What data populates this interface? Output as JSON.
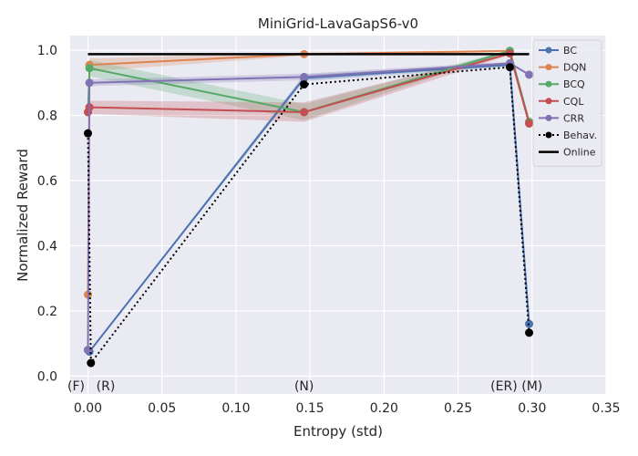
{
  "chart_data": {
    "type": "line",
    "title": "MiniGrid-LavaGapS6-v0",
    "xlabel": "Entropy (std)",
    "ylabel": "Normalized Reward",
    "xlim": [
      -0.012,
      0.35
    ],
    "ylim": [
      -0.055,
      1.045
    ],
    "xticks": [
      0.0,
      0.05,
      0.1,
      0.15,
      0.2,
      0.25,
      0.3,
      0.35
    ],
    "xtick_labels": [
      "0.00",
      "0.05",
      "0.10",
      "0.15",
      "0.20",
      "0.25",
      "0.30",
      "0.35"
    ],
    "yticks": [
      0.0,
      0.2,
      0.4,
      0.6,
      0.8,
      1.0
    ],
    "ytick_labels": [
      "0.0",
      "0.2",
      "0.4",
      "0.6",
      "0.8",
      "1.0"
    ],
    "grid": true,
    "legend_position": "top-right",
    "x": [
      0.0,
      0.001,
      0.146,
      0.285,
      0.298
    ],
    "series": [
      {
        "name": "BC",
        "color": "#4c72b0",
        "values": [
          0.08,
          0.075,
          0.915,
          0.955,
          0.16
        ],
        "band": [
          0.0,
          0.0,
          0.01,
          0.005,
          0.0
        ]
      },
      {
        "name": "DQN",
        "color": "#dd8452",
        "values": [
          0.25,
          0.955,
          0.988,
          0.998,
          0.78
        ],
        "band": [
          0.0,
          0.02,
          0.005,
          0.003,
          0.005
        ]
      },
      {
        "name": "BCQ",
        "color": "#55a868",
        "values": [
          0.81,
          0.945,
          0.81,
          0.998,
          0.78
        ],
        "band": [
          0.0,
          0.025,
          0.025,
          0.003,
          0.005
        ]
      },
      {
        "name": "CQL",
        "color": "#c44e52",
        "values": [
          0.81,
          0.825,
          0.81,
          0.99,
          0.775
        ],
        "band": [
          0.0,
          0.02,
          0.03,
          0.005,
          0.005
        ]
      },
      {
        "name": "CRR",
        "color": "#8172b3",
        "values": [
          0.08,
          0.9,
          0.918,
          0.96,
          0.925
        ],
        "band": [
          0.0,
          0.01,
          0.01,
          0.005,
          0.0
        ]
      }
    ],
    "behavior": {
      "name": "Behav.",
      "color": "#000000",
      "x": [
        0.0,
        0.002,
        0.146,
        0.285,
        0.298
      ],
      "values": [
        0.745,
        0.04,
        0.895,
        0.948,
        0.133
      ]
    },
    "online": {
      "name": "Online",
      "color": "#000000",
      "x": [
        0.0,
        0.298
      ],
      "values": [
        0.988,
        0.988
      ]
    },
    "annotations": [
      {
        "text": "(F)",
        "x": -0.008
      },
      {
        "text": "(R)",
        "x": 0.012
      },
      {
        "text": "(N)",
        "x": 0.146
      },
      {
        "text": "(ER)",
        "x": 0.281
      },
      {
        "text": "(M)",
        "x": 0.3
      }
    ]
  }
}
